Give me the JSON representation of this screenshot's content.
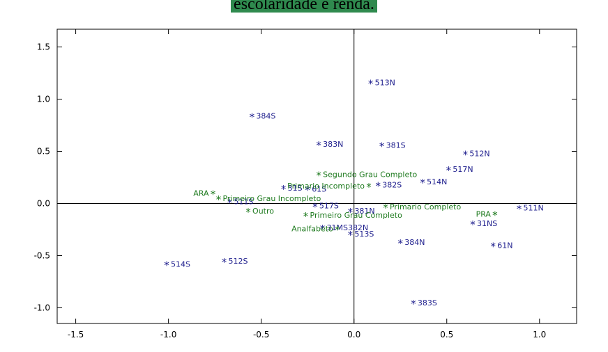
{
  "caption": "escolaridade e renda.",
  "chart_data": {
    "type": "scatter",
    "title": "",
    "xlabel": "",
    "ylabel": "",
    "xlim": [
      -1.6,
      1.2
    ],
    "ylim": [
      -1.15,
      1.67
    ],
    "x_ticks": [
      -1.5,
      -1.0,
      -0.5,
      0.0,
      0.5,
      1.0
    ],
    "x_tick_labels": [
      "-1.5",
      "-1.0",
      "-0.5",
      "0.0",
      "0.5",
      "1.0"
    ],
    "y_ticks": [
      -1.0,
      -0.5,
      0.0,
      0.5,
      1.0,
      1.5
    ],
    "y_tick_labels": [
      "-1.0",
      "-0.5",
      "0.0",
      "0.5",
      "1.0",
      "1.5"
    ],
    "reference_lines": {
      "x": 0,
      "y": 0
    },
    "grid": false,
    "legend": "none",
    "colors": {
      "blue": "#1c1c8c",
      "green": "#1e7a1e",
      "axis": "#000000"
    },
    "series": [
      {
        "color": "blue",
        "points": [
          {
            "label": "513N",
            "x": 0.09,
            "y": 1.16
          },
          {
            "label": "384S",
            "x": -0.55,
            "y": 0.84
          },
          {
            "label": "383N",
            "x": -0.19,
            "y": 0.57
          },
          {
            "label": "381S",
            "x": 0.15,
            "y": 0.56
          },
          {
            "label": "512N",
            "x": 0.6,
            "y": 0.48
          },
          {
            "label": "517N",
            "x": 0.51,
            "y": 0.33
          },
          {
            "label": "382S",
            "x": 0.13,
            "y": 0.18
          },
          {
            "label": "514N",
            "x": 0.37,
            "y": 0.21
          },
          {
            "label": "31S",
            "x": -0.38,
            "y": 0.15
          },
          {
            "label": "61S",
            "x": -0.25,
            "y": 0.14
          },
          {
            "label": "511S",
            "x": -0.67,
            "y": 0.02
          },
          {
            "label": "517S",
            "x": -0.21,
            "y": -0.02
          },
          {
            "label": "381N",
            "x": -0.02,
            "y": -0.07
          },
          {
            "label": "31MS382N",
            "x": -0.17,
            "y": -0.23
          },
          {
            "label": "513S",
            "x": -0.02,
            "y": -0.29
          },
          {
            "label": "384N",
            "x": 0.25,
            "y": -0.37
          },
          {
            "label": "511N",
            "x": 0.89,
            "y": -0.04
          },
          {
            "label": "31NS",
            "x": 0.64,
            "y": -0.19
          },
          {
            "label": "61N",
            "x": 0.75,
            "y": -0.4
          },
          {
            "label": "514S",
            "x": -1.01,
            "y": -0.58
          },
          {
            "label": "512S",
            "x": -0.7,
            "y": -0.55
          },
          {
            "label": "383S",
            "x": 0.32,
            "y": -0.95
          }
        ]
      },
      {
        "color": "green",
        "points": [
          {
            "label": "Segundo Grau Completo",
            "x": -0.19,
            "y": 0.28,
            "label_side": "right"
          },
          {
            "label": "Primario Incompleto",
            "x": 0.08,
            "y": 0.17,
            "label_side": "left"
          },
          {
            "label": "ARA",
            "x": -0.76,
            "y": 0.1,
            "label_side": "left"
          },
          {
            "label": "Primeiro Grau Incompleto",
            "x": -0.73,
            "y": 0.05,
            "label_side": "right"
          },
          {
            "label": "Primario Completo",
            "x": 0.17,
            "y": -0.03,
            "label_side": "right"
          },
          {
            "label": "Outro",
            "x": -0.57,
            "y": -0.07,
            "label_side": "right"
          },
          {
            "label": "PRA",
            "x": 0.76,
            "y": -0.1,
            "label_side": "left"
          },
          {
            "label": "Primeiro Grau Completo",
            "x": -0.26,
            "y": -0.11,
            "label_side": "right"
          },
          {
            "label": "Analfabeto",
            "x": -0.09,
            "y": -0.24,
            "label_side": "left"
          }
        ]
      }
    ]
  }
}
